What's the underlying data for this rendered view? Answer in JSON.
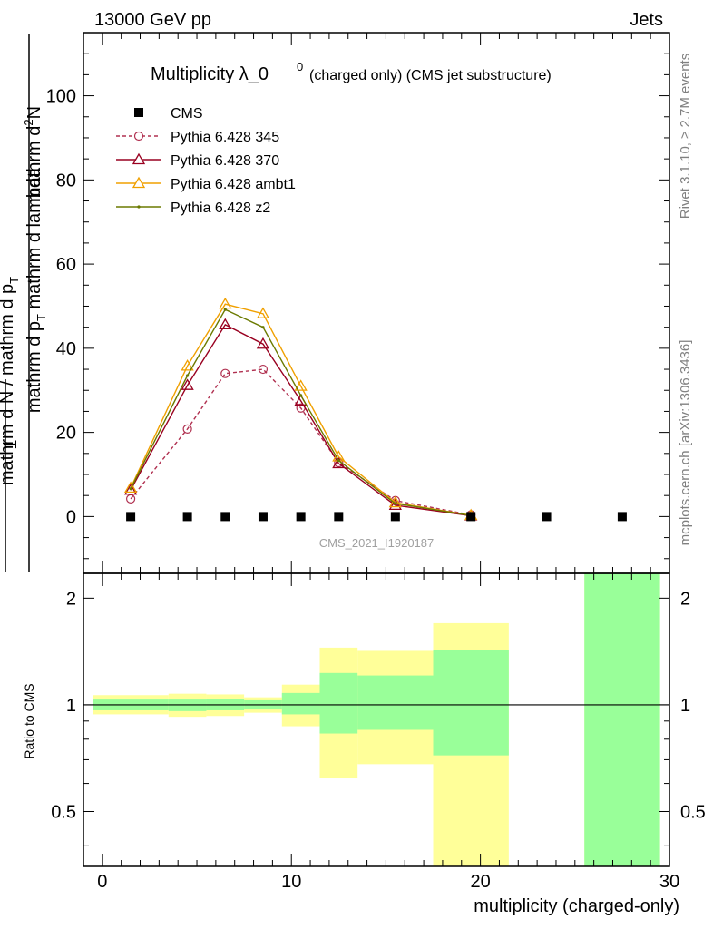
{
  "header": {
    "left": "13000 GeV pp",
    "right": "Jets"
  },
  "side_labels": {
    "rivet": "Rivet 3.1.10, ≥ 2.7M events",
    "mcplots": "mcplots.cern.ch [arXiv:1306.3436]"
  },
  "watermark": "CMS_2021_I1920187",
  "chart_data": {
    "type": "line",
    "title": {
      "main": "Multiplicity λ_0",
      "superscript": "0",
      "suffix": "(charged only) (CMS jet substructure)"
    },
    "xlabel": "multiplicity (charged-only)",
    "ylabel_main": "1 / mathrm d N / mathrm d p_T mathrm d N / mathrm d p_T mathrm d lambda",
    "ylabel_parts": {
      "numer": "mathrm d",
      "numer_sup": "2",
      "numer_end": "N",
      "numer_line2": "mathrm d p",
      "numer_sub": "T",
      "numer_end2": " mathrm d lambda",
      "one": "1",
      "denom": "mathrm d N / mathrm d p",
      "denom_sub": "T"
    },
    "ylabel_ratio": "Ratio to CMS",
    "xlim": [
      -1,
      30
    ],
    "main_ylim": [
      -13.5,
      115
    ],
    "main_yticks": [
      0,
      20,
      40,
      60,
      80,
      100
    ],
    "ratio_ylim": [
      0.35,
      2.35
    ],
    "ratio_yticks": [
      "0.5",
      "1",
      "2"
    ],
    "xticks": [
      0,
      10,
      20,
      30
    ],
    "legend": {
      "placement": "top-left",
      "entries": [
        "CMS",
        "Pythia 6.428 345",
        "Pythia 6.428 370",
        "Pythia 6.428 ambt1",
        "Pythia 6.428 z2"
      ]
    },
    "data_points": {
      "name": "CMS",
      "x": [
        1.5,
        4.5,
        6.5,
        8.5,
        10.5,
        12.5,
        15.5,
        19.5,
        23.5,
        27.5
      ],
      "y": [
        0,
        0,
        0,
        0,
        0,
        0,
        0,
        0,
        0,
        0
      ]
    },
    "series": [
      {
        "name": "Pythia 6.428 345",
        "color": "#b03050",
        "dashed": true,
        "marker": "circle",
        "x": [
          1.5,
          4.5,
          6.5,
          8.5,
          10.5,
          12.5,
          15.5,
          19.5
        ],
        "y": [
          4.2,
          20.8,
          34.0,
          35.0,
          25.8,
          12.8,
          3.8,
          0.4
        ]
      },
      {
        "name": "Pythia 6.428 370",
        "color": "#990020",
        "dashed": false,
        "marker": "triangle",
        "x": [
          1.5,
          4.5,
          6.5,
          8.5,
          10.5,
          12.5,
          15.5,
          19.5
        ],
        "y": [
          6.3,
          31.2,
          45.6,
          41.0,
          27.5,
          12.6,
          2.7,
          0.2
        ]
      },
      {
        "name": "Pythia 6.428 ambt1",
        "color": "#f0a000",
        "dashed": false,
        "marker": "triangle",
        "x": [
          1.5,
          4.5,
          6.5,
          8.5,
          10.5,
          12.5,
          15.5,
          19.5
        ],
        "y": [
          6.8,
          35.8,
          50.5,
          48.2,
          31.0,
          14.2,
          3.3,
          0.3
        ]
      },
      {
        "name": "Pythia 6.428 z2",
        "color": "#6b7a00",
        "dashed": false,
        "marker": "dot",
        "x": [
          1.5,
          4.5,
          6.5,
          8.5,
          10.5,
          12.5,
          15.5,
          19.5
        ],
        "y": [
          6.6,
          33.5,
          49.2,
          45.0,
          28.8,
          13.3,
          3.1,
          0.25
        ]
      }
    ],
    "ratio_bands": [
      {
        "x0": -0.5,
        "x1": 3.5,
        "green": [
          0.965,
          1.035
        ],
        "yellow": [
          0.94,
          1.065
        ]
      },
      {
        "x0": 3.5,
        "x1": 5.5,
        "green": [
          0.96,
          1.035
        ],
        "yellow": [
          0.925,
          1.075
        ]
      },
      {
        "x0": 5.5,
        "x1": 7.5,
        "green": [
          0.965,
          1.04
        ],
        "yellow": [
          0.93,
          1.07
        ]
      },
      {
        "x0": 7.5,
        "x1": 9.5,
        "green": [
          0.97,
          1.03
        ],
        "yellow": [
          0.95,
          1.05
        ]
      },
      {
        "x0": 9.5,
        "x1": 11.5,
        "green": [
          0.94,
          1.08
        ],
        "yellow": [
          0.87,
          1.14
        ]
      },
      {
        "x0": 11.5,
        "x1": 13.5,
        "green": [
          0.83,
          1.23
        ],
        "yellow": [
          0.62,
          1.45
        ]
      },
      {
        "x0": 13.5,
        "x1": 17.5,
        "green": [
          0.85,
          1.21
        ],
        "yellow": [
          0.68,
          1.42
        ]
      },
      {
        "x0": 17.5,
        "x1": 21.5,
        "green": [
          0.72,
          1.43
        ],
        "yellow": [
          0.3,
          1.7
        ]
      },
      {
        "x0": 25.5,
        "x1": 29.5,
        "green": [
          0.3,
          2.5
        ],
        "yellow": [
          0.3,
          2.5
        ]
      }
    ],
    "colors": {
      "green": "#99ff99",
      "yellow": "#ffff99"
    }
  }
}
